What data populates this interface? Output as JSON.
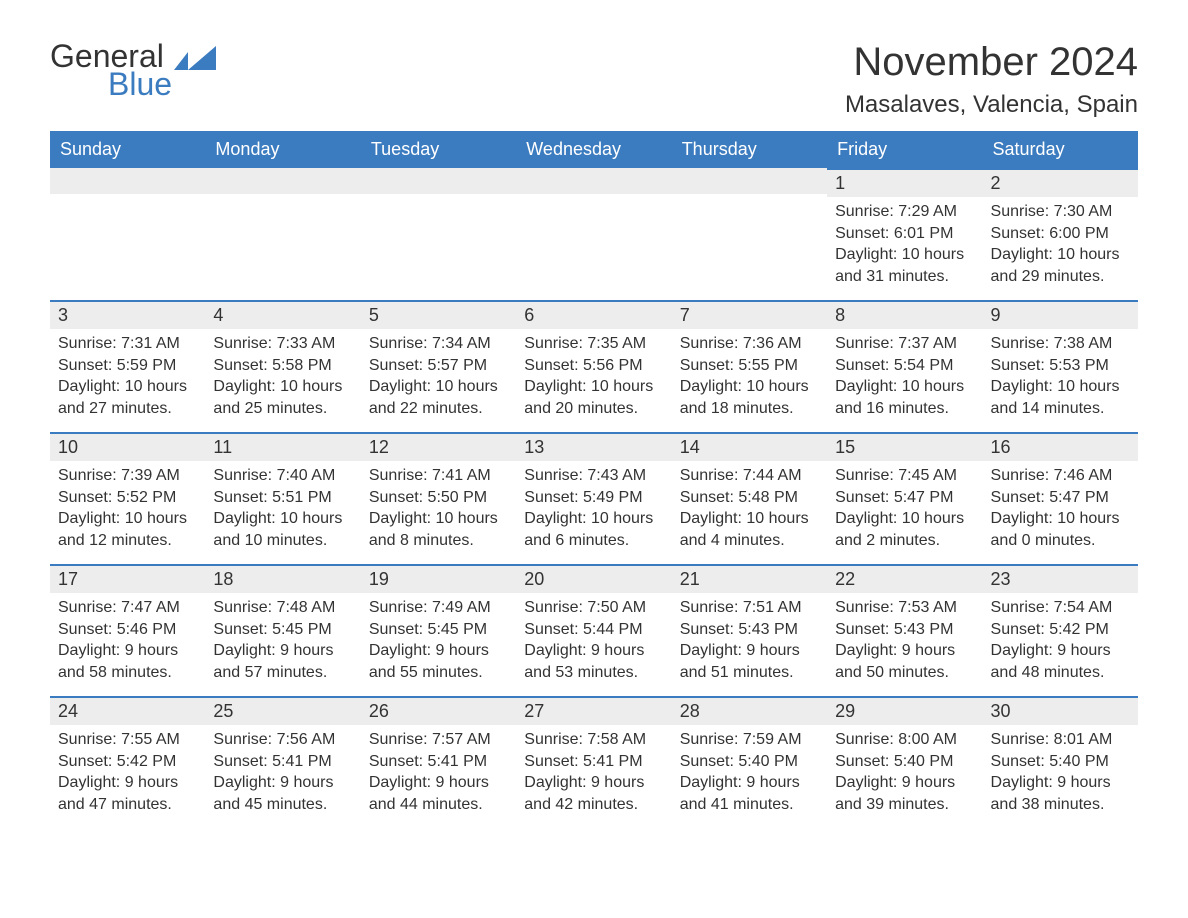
{
  "logo": {
    "word1": "General",
    "word2": "Blue"
  },
  "title": "November 2024",
  "location": "Masalaves, Valencia, Spain",
  "colors": {
    "brand_blue": "#3b7bbf",
    "header_text": "#ffffff",
    "row_bar_bg": "#ededed",
    "text": "#333333",
    "background": "#ffffff"
  },
  "typography": {
    "title_fontsize": 40,
    "location_fontsize": 24,
    "dayheader_fontsize": 18,
    "daynum_fontsize": 18,
    "body_fontsize": 16,
    "font_family": "Arial"
  },
  "calendar": {
    "type": "table",
    "columns": [
      "Sunday",
      "Monday",
      "Tuesday",
      "Wednesday",
      "Thursday",
      "Friday",
      "Saturday"
    ],
    "weeks": [
      [
        null,
        null,
        null,
        null,
        null,
        {
          "n": "1",
          "sunrise": "7:29 AM",
          "sunset": "6:01 PM",
          "dl1": "10 hours",
          "dl2": "and 31 minutes."
        },
        {
          "n": "2",
          "sunrise": "7:30 AM",
          "sunset": "6:00 PM",
          "dl1": "10 hours",
          "dl2": "and 29 minutes."
        }
      ],
      [
        {
          "n": "3",
          "sunrise": "7:31 AM",
          "sunset": "5:59 PM",
          "dl1": "10 hours",
          "dl2": "and 27 minutes."
        },
        {
          "n": "4",
          "sunrise": "7:33 AM",
          "sunset": "5:58 PM",
          "dl1": "10 hours",
          "dl2": "and 25 minutes."
        },
        {
          "n": "5",
          "sunrise": "7:34 AM",
          "sunset": "5:57 PM",
          "dl1": "10 hours",
          "dl2": "and 22 minutes."
        },
        {
          "n": "6",
          "sunrise": "7:35 AM",
          "sunset": "5:56 PM",
          "dl1": "10 hours",
          "dl2": "and 20 minutes."
        },
        {
          "n": "7",
          "sunrise": "7:36 AM",
          "sunset": "5:55 PM",
          "dl1": "10 hours",
          "dl2": "and 18 minutes."
        },
        {
          "n": "8",
          "sunrise": "7:37 AM",
          "sunset": "5:54 PM",
          "dl1": "10 hours",
          "dl2": "and 16 minutes."
        },
        {
          "n": "9",
          "sunrise": "7:38 AM",
          "sunset": "5:53 PM",
          "dl1": "10 hours",
          "dl2": "and 14 minutes."
        }
      ],
      [
        {
          "n": "10",
          "sunrise": "7:39 AM",
          "sunset": "5:52 PM",
          "dl1": "10 hours",
          "dl2": "and 12 minutes."
        },
        {
          "n": "11",
          "sunrise": "7:40 AM",
          "sunset": "5:51 PM",
          "dl1": "10 hours",
          "dl2": "and 10 minutes."
        },
        {
          "n": "12",
          "sunrise": "7:41 AM",
          "sunset": "5:50 PM",
          "dl1": "10 hours",
          "dl2": "and 8 minutes."
        },
        {
          "n": "13",
          "sunrise": "7:43 AM",
          "sunset": "5:49 PM",
          "dl1": "10 hours",
          "dl2": "and 6 minutes."
        },
        {
          "n": "14",
          "sunrise": "7:44 AM",
          "sunset": "5:48 PM",
          "dl1": "10 hours",
          "dl2": "and 4 minutes."
        },
        {
          "n": "15",
          "sunrise": "7:45 AM",
          "sunset": "5:47 PM",
          "dl1": "10 hours",
          "dl2": "and 2 minutes."
        },
        {
          "n": "16",
          "sunrise": "7:46 AM",
          "sunset": "5:47 PM",
          "dl1": "10 hours",
          "dl2": "and 0 minutes."
        }
      ],
      [
        {
          "n": "17",
          "sunrise": "7:47 AM",
          "sunset": "5:46 PM",
          "dl1": "9 hours",
          "dl2": "and 58 minutes."
        },
        {
          "n": "18",
          "sunrise": "7:48 AM",
          "sunset": "5:45 PM",
          "dl1": "9 hours",
          "dl2": "and 57 minutes."
        },
        {
          "n": "19",
          "sunrise": "7:49 AM",
          "sunset": "5:45 PM",
          "dl1": "9 hours",
          "dl2": "and 55 minutes."
        },
        {
          "n": "20",
          "sunrise": "7:50 AM",
          "sunset": "5:44 PM",
          "dl1": "9 hours",
          "dl2": "and 53 minutes."
        },
        {
          "n": "21",
          "sunrise": "7:51 AM",
          "sunset": "5:43 PM",
          "dl1": "9 hours",
          "dl2": "and 51 minutes."
        },
        {
          "n": "22",
          "sunrise": "7:53 AM",
          "sunset": "5:43 PM",
          "dl1": "9 hours",
          "dl2": "and 50 minutes."
        },
        {
          "n": "23",
          "sunrise": "7:54 AM",
          "sunset": "5:42 PM",
          "dl1": "9 hours",
          "dl2": "and 48 minutes."
        }
      ],
      [
        {
          "n": "24",
          "sunrise": "7:55 AM",
          "sunset": "5:42 PM",
          "dl1": "9 hours",
          "dl2": "and 47 minutes."
        },
        {
          "n": "25",
          "sunrise": "7:56 AM",
          "sunset": "5:41 PM",
          "dl1": "9 hours",
          "dl2": "and 45 minutes."
        },
        {
          "n": "26",
          "sunrise": "7:57 AM",
          "sunset": "5:41 PM",
          "dl1": "9 hours",
          "dl2": "and 44 minutes."
        },
        {
          "n": "27",
          "sunrise": "7:58 AM",
          "sunset": "5:41 PM",
          "dl1": "9 hours",
          "dl2": "and 42 minutes."
        },
        {
          "n": "28",
          "sunrise": "7:59 AM",
          "sunset": "5:40 PM",
          "dl1": "9 hours",
          "dl2": "and 41 minutes."
        },
        {
          "n": "29",
          "sunrise": "8:00 AM",
          "sunset": "5:40 PM",
          "dl1": "9 hours",
          "dl2": "and 39 minutes."
        },
        {
          "n": "30",
          "sunrise": "8:01 AM",
          "sunset": "5:40 PM",
          "dl1": "9 hours",
          "dl2": "and 38 minutes."
        }
      ]
    ]
  },
  "labels": {
    "sunrise_prefix": "Sunrise: ",
    "sunset_prefix": "Sunset: ",
    "daylight_prefix": "Daylight: "
  }
}
